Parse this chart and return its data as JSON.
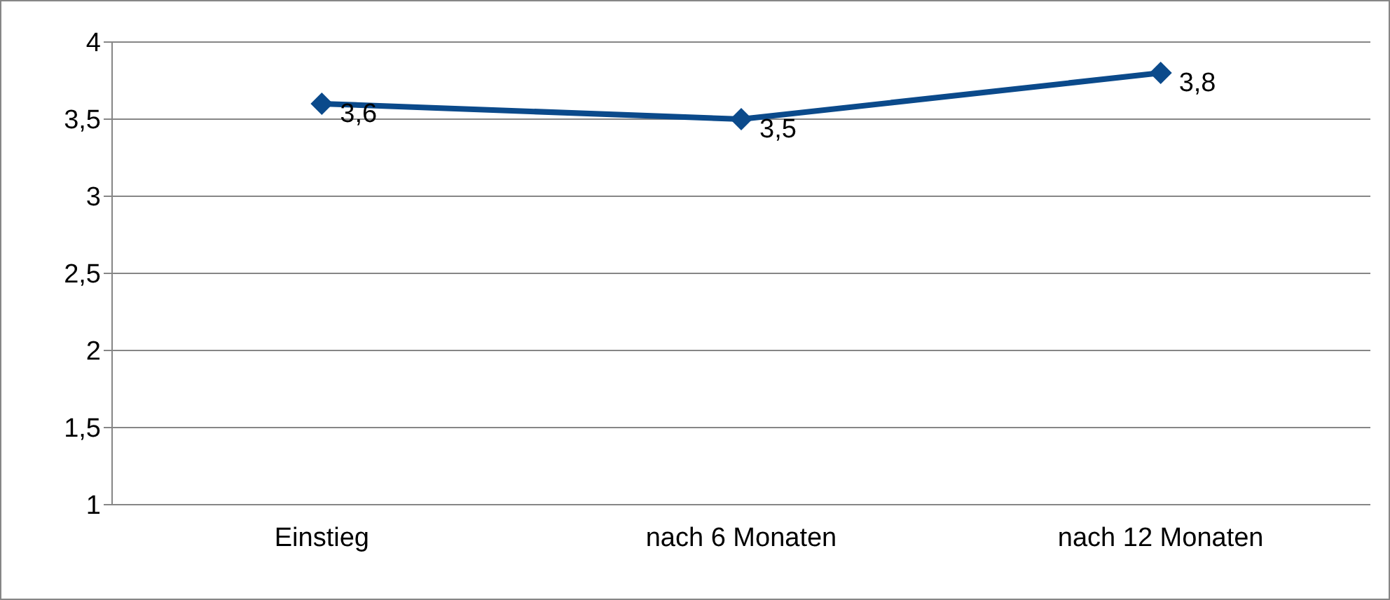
{
  "chart_data": {
    "type": "line",
    "categories": [
      "Einstieg",
      "nach 6 Monaten",
      "nach 12 Monaten"
    ],
    "series": [
      {
        "color": "#0b4a8b",
        "values": [
          3.6,
          3.5,
          3.8
        ],
        "value_labels": [
          "3,6",
          "3,5",
          "3,8"
        ]
      }
    ],
    "ylim": [
      1,
      4
    ],
    "yticks": [
      {
        "value": 1,
        "label": "1"
      },
      {
        "value": 1.5,
        "label": "1,5"
      },
      {
        "value": 2,
        "label": "2"
      },
      {
        "value": 2.5,
        "label": "2,5"
      },
      {
        "value": 3,
        "label": "3"
      },
      {
        "value": 3.5,
        "label": "3,5"
      },
      {
        "value": 4,
        "label": "4"
      }
    ],
    "grid": "y",
    "marker": "diamond",
    "line_style": "solid",
    "legend": false
  }
}
